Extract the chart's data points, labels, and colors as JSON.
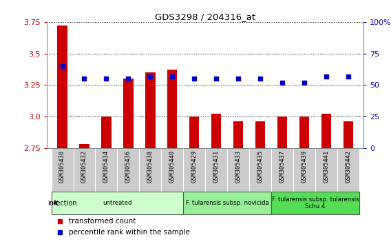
{
  "title": "GDS3298 / 204316_at",
  "samples": [
    "GSM305430",
    "GSM305432",
    "GSM305434",
    "GSM305436",
    "GSM305438",
    "GSM305440",
    "GSM305429",
    "GSM305431",
    "GSM305433",
    "GSM305435",
    "GSM305437",
    "GSM305439",
    "GSM305441",
    "GSM305442"
  ],
  "transformed_count": [
    3.72,
    2.78,
    3.0,
    3.3,
    3.35,
    3.37,
    3.0,
    3.02,
    2.96,
    2.96,
    3.0,
    3.0,
    3.02,
    2.96
  ],
  "percentile_rank": [
    65,
    55,
    55,
    55,
    57,
    57,
    55,
    55,
    55,
    55,
    52,
    52,
    57,
    57
  ],
  "ylim_left": [
    2.75,
    3.75
  ],
  "ylim_right": [
    0,
    100
  ],
  "yticks_left": [
    2.75,
    3.0,
    3.25,
    3.5,
    3.75
  ],
  "yticks_right": [
    0,
    25,
    50,
    75,
    100
  ],
  "bar_color": "#cc0000",
  "dot_color": "#0000cc",
  "bar_width": 0.45,
  "groups": [
    {
      "label": "untreated",
      "start": 0,
      "end": 6,
      "color": "#ccffcc"
    },
    {
      "label": "F. tularensis subsp. novicida",
      "start": 6,
      "end": 10,
      "color": "#99ee99"
    },
    {
      "label": "F. tularensis subsp. tularensis\nSchu 4",
      "start": 10,
      "end": 14,
      "color": "#55dd55"
    }
  ],
  "infection_label": "infection",
  "legend_items": [
    {
      "color": "#cc0000",
      "label": "transformed count"
    },
    {
      "color": "#0000cc",
      "label": "percentile rank within the sample"
    }
  ],
  "tick_color_left": "#cc0000",
  "tick_color_right": "#0000cc",
  "tick_bg_color": "#cccccc",
  "spine_color": "#888888"
}
